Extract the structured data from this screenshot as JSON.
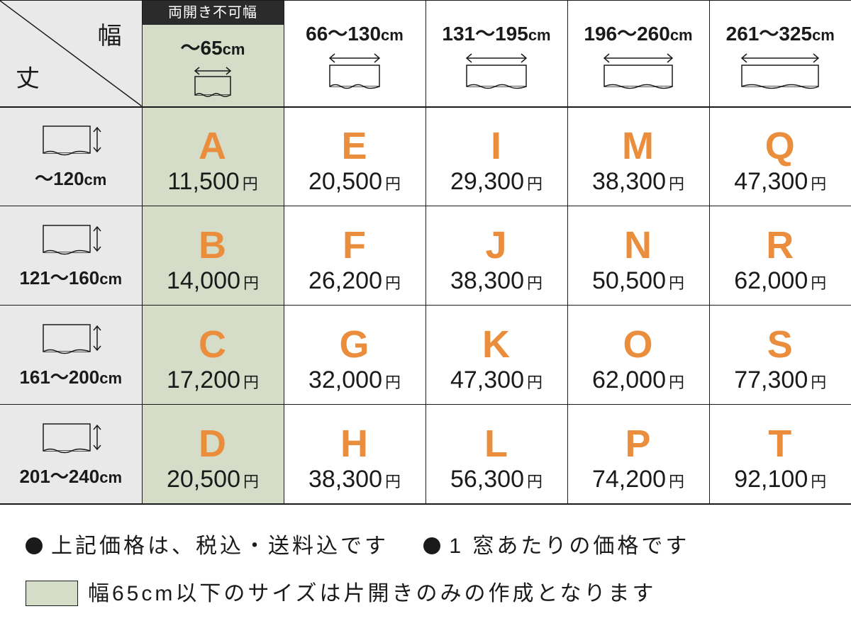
{
  "corner": {
    "width_label": "幅",
    "height_label": "丈"
  },
  "width_headers": [
    {
      "banner": "両開き不可幅",
      "range": "～65",
      "unit": "cm",
      "shaded": true
    },
    {
      "range": "66～130",
      "unit": "cm"
    },
    {
      "range": "131～195",
      "unit": "cm"
    },
    {
      "range": "196～260",
      "unit": "cm"
    },
    {
      "range": "261～325",
      "unit": "cm"
    }
  ],
  "height_headers": [
    {
      "range": "～120",
      "unit": "cm"
    },
    {
      "range": "121～160",
      "unit": "cm"
    },
    {
      "range": "161～200",
      "unit": "cm"
    },
    {
      "range": "201～240",
      "unit": "cm"
    }
  ],
  "cells": [
    [
      {
        "code": "A",
        "price": "11,500"
      },
      {
        "code": "E",
        "price": "20,500"
      },
      {
        "code": "I",
        "price": "29,300"
      },
      {
        "code": "M",
        "price": "38,300"
      },
      {
        "code": "Q",
        "price": "47,300"
      }
    ],
    [
      {
        "code": "B",
        "price": "14,000"
      },
      {
        "code": "F",
        "price": "26,200"
      },
      {
        "code": "J",
        "price": "38,300"
      },
      {
        "code": "N",
        "price": "50,500"
      },
      {
        "code": "R",
        "price": "62,000"
      }
    ],
    [
      {
        "code": "C",
        "price": "17,200"
      },
      {
        "code": "G",
        "price": "32,000"
      },
      {
        "code": "K",
        "price": "47,300"
      },
      {
        "code": "O",
        "price": "62,000"
      },
      {
        "code": "S",
        "price": "77,300"
      }
    ],
    [
      {
        "code": "D",
        "price": "20,500"
      },
      {
        "code": "H",
        "price": "38,300"
      },
      {
        "code": "L",
        "price": "56,300"
      },
      {
        "code": "P",
        "price": "74,200"
      },
      {
        "code": "T",
        "price": "92,100"
      }
    ]
  ],
  "yen": "円",
  "footer": {
    "note1": "上記価格は、税込・送料込です",
    "note2": "1 窓あたりの価格です",
    "note3": "幅65cm以下のサイズは片開きのみの作成となります"
  },
  "style": {
    "code_color": "#ea8d3d",
    "shade_color": "#d5ddc8",
    "row_hdr_bg": "#e9e9e9",
    "border_color": "#1a1a1a"
  }
}
